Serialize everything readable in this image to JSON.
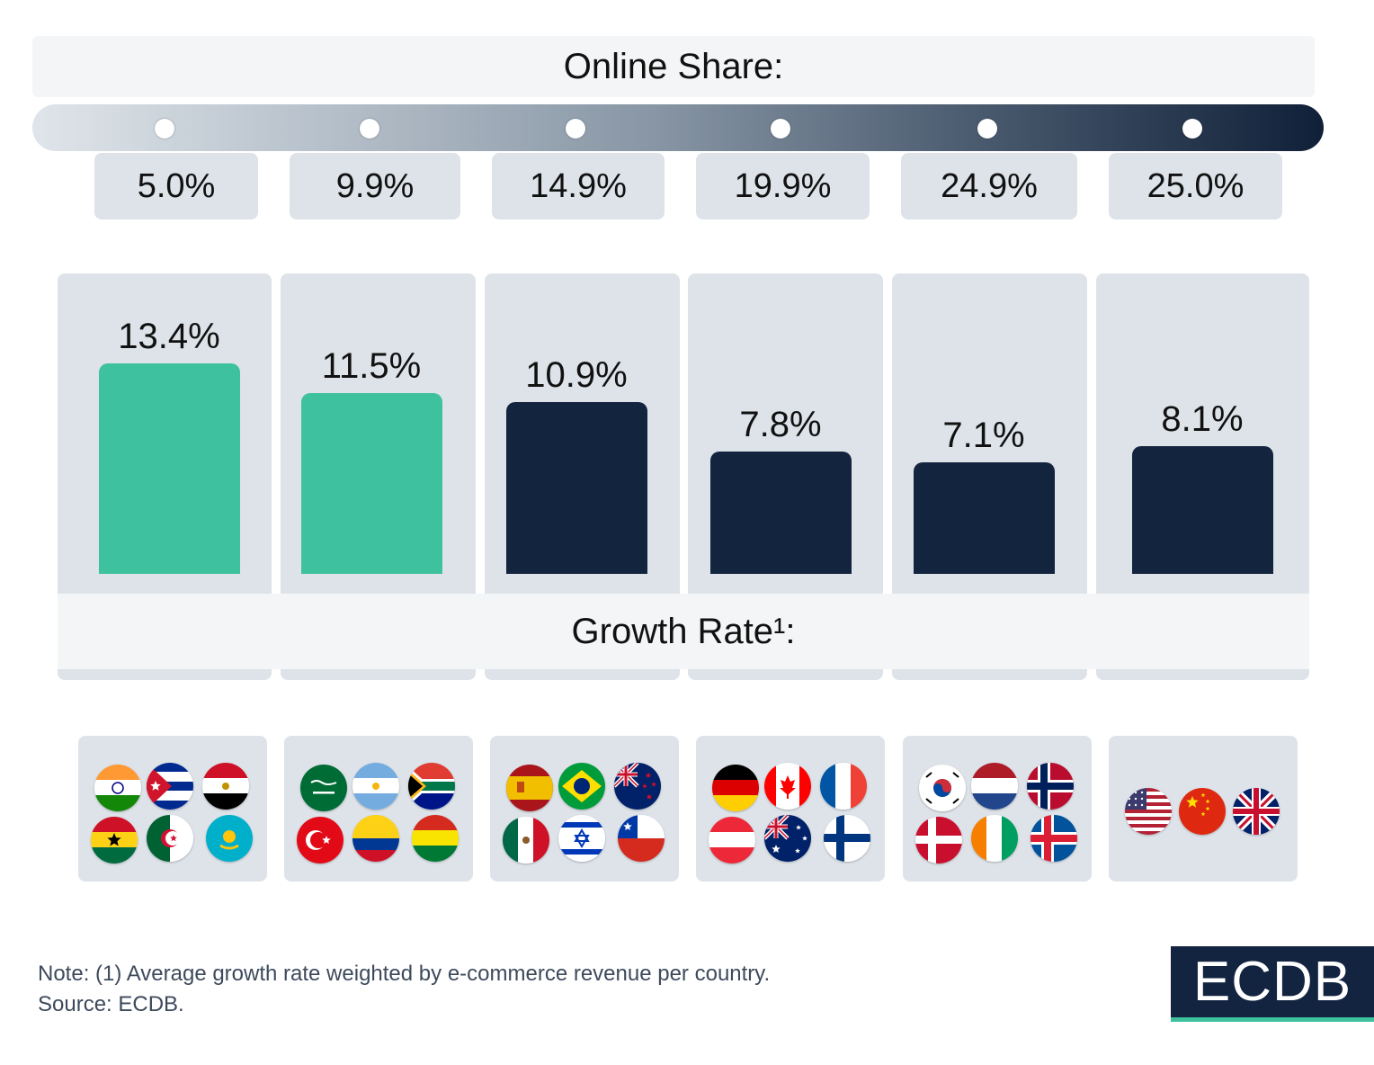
{
  "online_share_title": "Online Share:",
  "growth_rate_title": "Growth Rate¹:",
  "chart_data": {
    "type": "bar",
    "title": "Growth Rate¹:",
    "xlabel": "Online Share:",
    "ylabel": "",
    "categories": [
      "5.0%",
      "9.9%",
      "14.9%",
      "19.9%",
      "24.9%",
      "25.0%"
    ],
    "values": [
      13.4,
      11.5,
      10.9,
      7.8,
      7.1,
      8.1
    ],
    "value_labels": [
      "13.4%",
      "11.5%",
      "10.9%",
      "7.8%",
      "7.1%",
      "8.1%"
    ],
    "ylim": [
      0,
      16
    ],
    "bar_colors": [
      "#3ec19e",
      "#3ec19e",
      "#13243f",
      "#13243f",
      "#13243f",
      "#13243f"
    ],
    "grid": false,
    "legend": "none"
  },
  "flag_groups": [
    [
      "india-flag-icon",
      "cuba-flag-icon",
      "egypt-flag-icon",
      "ghana-flag-icon",
      "algeria-flag-icon",
      "kazakhstan-flag-icon"
    ],
    [
      "saudi-arabia-flag-icon",
      "argentina-flag-icon",
      "south-africa-flag-icon",
      "turkey-flag-icon",
      "colombia-flag-icon",
      "bolivia-flag-icon"
    ],
    [
      "spain-flag-icon",
      "brazil-flag-icon",
      "new-zealand-flag-icon",
      "mexico-flag-icon",
      "israel-flag-icon",
      "chile-flag-icon"
    ],
    [
      "germany-flag-icon",
      "canada-flag-icon",
      "france-flag-icon",
      "austria-flag-icon",
      "australia-flag-icon",
      "finland-flag-icon"
    ],
    [
      "south-korea-flag-icon",
      "netherlands-flag-icon",
      "norway-flag-icon",
      "denmark-flag-icon",
      "ivory-coast-flag-icon",
      "iceland-flag-icon"
    ],
    [
      "usa-flag-icon",
      "china-flag-icon",
      "uk-flag-icon"
    ]
  ],
  "note": "Note: (1) Average growth rate weighted by e-commerce revenue per country.",
  "source": "Source: ECDB.",
  "logo_text": "ECDB",
  "colors": {
    "accent_green": "#3ec19e",
    "navy": "#13243f",
    "panel": "#dde3e9"
  }
}
